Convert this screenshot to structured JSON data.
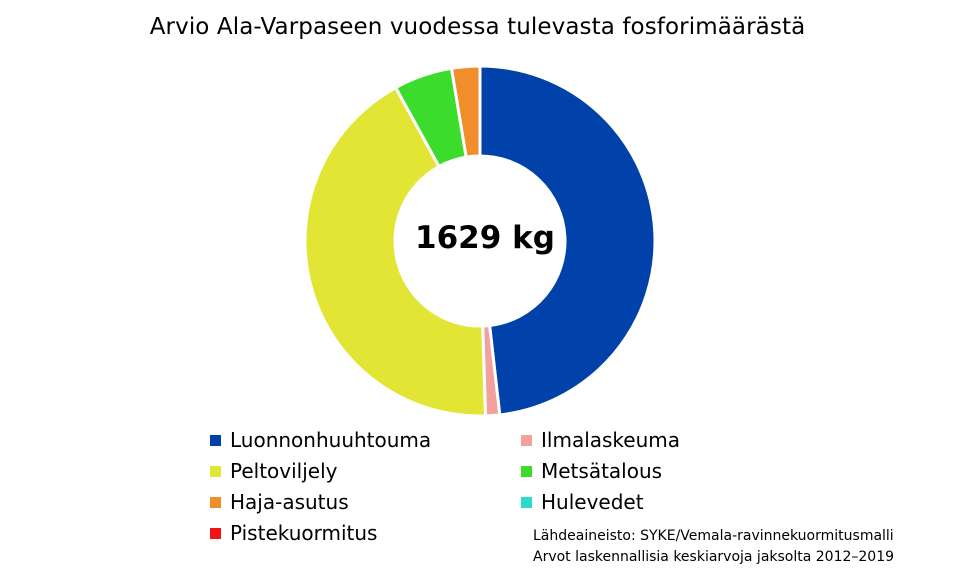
{
  "chart_data": {
    "type": "pie",
    "variant": "donut",
    "title": "Arvio Ala-Varpaseen vuodessa tulevasta fosforimäärästä",
    "center_label": "1629 kg",
    "unit": "%",
    "categories": [
      "Luonnonhuuhtouma",
      "Ilmalaskeuma",
      "Peltoviljely",
      "Metsätalous",
      "Haja-asutus",
      "Hulevedet",
      "Pistekuormitus"
    ],
    "values": [
      48.2,
      1.3,
      42.5,
      5.4,
      2.6,
      0.0,
      0.0
    ],
    "colors": [
      "#0041AA",
      "#F4A09C",
      "#E2E534",
      "#3CDC2C",
      "#F08E2C",
      "#2DD9C8",
      "#F01414"
    ],
    "legend_position": "bottom",
    "start_angle_deg": 0,
    "direction": "clockwise"
  },
  "source": {
    "line1": "Lähdeaineisto: SYKE/Vemala-ravinnekuormitusmalli",
    "line2": "Arvot laskennallisia keskiarvoja jaksolta 2012–2019"
  }
}
